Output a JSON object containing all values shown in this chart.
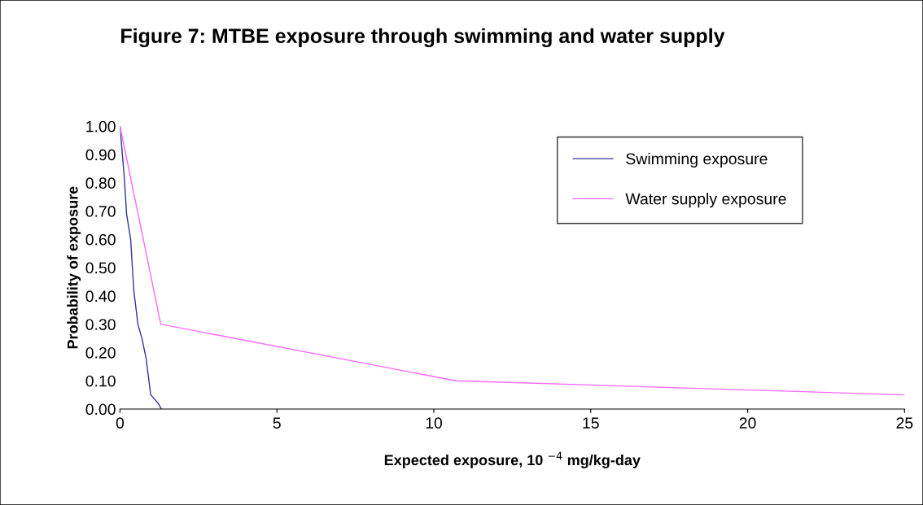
{
  "chart_data": {
    "type": "line",
    "title": "Figure 7: MTBE exposure through swimming and water supply",
    "xlabel": "Expected exposure, 10 $^{−4}$ mg/kg-day",
    "ylabel": "Probability of exposure",
    "series": [
      {
        "name": "Swimming exposure",
        "color": "#333399",
        "x": [
          0,
          0.13,
          0.21,
          0.34,
          0.44,
          0.57,
          0.7,
          0.83,
          0.98,
          1.22,
          1.32
        ],
        "values": [
          1.0,
          0.83,
          0.69,
          0.6,
          0.42,
          0.3,
          0.25,
          0.18,
          0.05,
          0.02,
          0.0
        ]
      },
      {
        "name": "Water supply exposure",
        "color": "#ff66ff",
        "x": [
          0,
          1.3,
          10.7,
          25
        ],
        "values": [
          1.0,
          0.3,
          0.1,
          0.05
        ]
      }
    ],
    "xlim": [
      0,
      25
    ],
    "xticks": [
      0,
      5,
      10,
      15,
      20,
      25
    ],
    "ylim": [
      0,
      1
    ],
    "yticks": [
      {
        "value": 0,
        "label": "0.00"
      },
      {
        "value": 0.1,
        "label": "0.10"
      },
      {
        "value": 0.2,
        "label": "0.20"
      },
      {
        "value": 0.3,
        "label": "0.30"
      },
      {
        "value": 0.4,
        "label": "0.40"
      },
      {
        "value": 0.5,
        "label": "0.50"
      },
      {
        "value": 0.6,
        "label": "0.60"
      },
      {
        "value": 0.7,
        "label": "0.70"
      },
      {
        "value": 0.8,
        "label": "0.80"
      },
      {
        "value": 0.9,
        "label": "0.90"
      },
      {
        "value": 1,
        "label": "1.00"
      }
    ],
    "legend": "top right",
    "grid": false,
    "marker": "none",
    "line_style": "solid"
  }
}
